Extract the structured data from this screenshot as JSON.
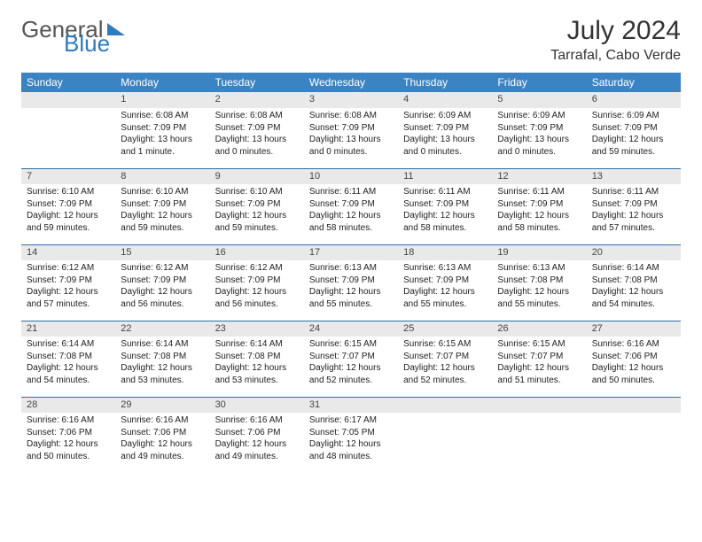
{
  "brand": {
    "word1": "General",
    "word2": "Blue"
  },
  "title": "July 2024",
  "location": "Tarrafal, Cabo Verde",
  "colors": {
    "header_bg": "#3b84c4",
    "header_text": "#ffffff",
    "daynum_bg": "#e9e9e9",
    "rule": "#2f6fa5",
    "brand_gray": "#555555",
    "brand_blue": "#2f7bbf",
    "title_color": "#333333",
    "text_color": "#222222",
    "page_bg": "#ffffff"
  },
  "fonts": {
    "base_family": "Arial",
    "title_size_pt": 22,
    "location_size_pt": 12,
    "header_size_pt": 9,
    "cell_size_pt": 7.5
  },
  "weekdays": [
    "Sunday",
    "Monday",
    "Tuesday",
    "Wednesday",
    "Thursday",
    "Friday",
    "Saturday"
  ],
  "weeks": [
    [
      null,
      {
        "d": "1",
        "sr": "6:08 AM",
        "ss": "7:09 PM",
        "dl": "13 hours and 1 minute."
      },
      {
        "d": "2",
        "sr": "6:08 AM",
        "ss": "7:09 PM",
        "dl": "13 hours and 0 minutes."
      },
      {
        "d": "3",
        "sr": "6:08 AM",
        "ss": "7:09 PM",
        "dl": "13 hours and 0 minutes."
      },
      {
        "d": "4",
        "sr": "6:09 AM",
        "ss": "7:09 PM",
        "dl": "13 hours and 0 minutes."
      },
      {
        "d": "5",
        "sr": "6:09 AM",
        "ss": "7:09 PM",
        "dl": "13 hours and 0 minutes."
      },
      {
        "d": "6",
        "sr": "6:09 AM",
        "ss": "7:09 PM",
        "dl": "12 hours and 59 minutes."
      }
    ],
    [
      {
        "d": "7",
        "sr": "6:10 AM",
        "ss": "7:09 PM",
        "dl": "12 hours and 59 minutes."
      },
      {
        "d": "8",
        "sr": "6:10 AM",
        "ss": "7:09 PM",
        "dl": "12 hours and 59 minutes."
      },
      {
        "d": "9",
        "sr": "6:10 AM",
        "ss": "7:09 PM",
        "dl": "12 hours and 59 minutes."
      },
      {
        "d": "10",
        "sr": "6:11 AM",
        "ss": "7:09 PM",
        "dl": "12 hours and 58 minutes."
      },
      {
        "d": "11",
        "sr": "6:11 AM",
        "ss": "7:09 PM",
        "dl": "12 hours and 58 minutes."
      },
      {
        "d": "12",
        "sr": "6:11 AM",
        "ss": "7:09 PM",
        "dl": "12 hours and 58 minutes."
      },
      {
        "d": "13",
        "sr": "6:11 AM",
        "ss": "7:09 PM",
        "dl": "12 hours and 57 minutes."
      }
    ],
    [
      {
        "d": "14",
        "sr": "6:12 AM",
        "ss": "7:09 PM",
        "dl": "12 hours and 57 minutes."
      },
      {
        "d": "15",
        "sr": "6:12 AM",
        "ss": "7:09 PM",
        "dl": "12 hours and 56 minutes."
      },
      {
        "d": "16",
        "sr": "6:12 AM",
        "ss": "7:09 PM",
        "dl": "12 hours and 56 minutes."
      },
      {
        "d": "17",
        "sr": "6:13 AM",
        "ss": "7:09 PM",
        "dl": "12 hours and 55 minutes."
      },
      {
        "d": "18",
        "sr": "6:13 AM",
        "ss": "7:09 PM",
        "dl": "12 hours and 55 minutes."
      },
      {
        "d": "19",
        "sr": "6:13 AM",
        "ss": "7:08 PM",
        "dl": "12 hours and 55 minutes."
      },
      {
        "d": "20",
        "sr": "6:14 AM",
        "ss": "7:08 PM",
        "dl": "12 hours and 54 minutes."
      }
    ],
    [
      {
        "d": "21",
        "sr": "6:14 AM",
        "ss": "7:08 PM",
        "dl": "12 hours and 54 minutes."
      },
      {
        "d": "22",
        "sr": "6:14 AM",
        "ss": "7:08 PM",
        "dl": "12 hours and 53 minutes."
      },
      {
        "d": "23",
        "sr": "6:14 AM",
        "ss": "7:08 PM",
        "dl": "12 hours and 53 minutes."
      },
      {
        "d": "24",
        "sr": "6:15 AM",
        "ss": "7:07 PM",
        "dl": "12 hours and 52 minutes."
      },
      {
        "d": "25",
        "sr": "6:15 AM",
        "ss": "7:07 PM",
        "dl": "12 hours and 52 minutes."
      },
      {
        "d": "26",
        "sr": "6:15 AM",
        "ss": "7:07 PM",
        "dl": "12 hours and 51 minutes."
      },
      {
        "d": "27",
        "sr": "6:16 AM",
        "ss": "7:06 PM",
        "dl": "12 hours and 50 minutes."
      }
    ],
    [
      {
        "d": "28",
        "sr": "6:16 AM",
        "ss": "7:06 PM",
        "dl": "12 hours and 50 minutes."
      },
      {
        "d": "29",
        "sr": "6:16 AM",
        "ss": "7:06 PM",
        "dl": "12 hours and 49 minutes."
      },
      {
        "d": "30",
        "sr": "6:16 AM",
        "ss": "7:06 PM",
        "dl": "12 hours and 49 minutes."
      },
      {
        "d": "31",
        "sr": "6:17 AM",
        "ss": "7:05 PM",
        "dl": "12 hours and 48 minutes."
      },
      null,
      null,
      null
    ]
  ],
  "labels": {
    "sunrise": "Sunrise:",
    "sunset": "Sunset:",
    "daylight": "Daylight:"
  }
}
